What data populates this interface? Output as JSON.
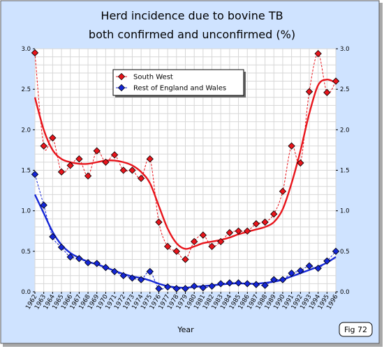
{
  "chart_data": {
    "type": "line",
    "title_lines": [
      "Herd incidence due to bovine TB",
      "both confirmed and unconfirmed (%)"
    ],
    "xlabel": "Year",
    "ylabel": "",
    "badge": "Fig 72",
    "x_ticks": [
      "1962",
      "1963",
      "1964",
      "1965",
      "1966",
      "1967",
      "1968",
      "1969",
      "1970",
      "1971",
      "1972",
      "1973",
      "1974",
      "1975",
      "1976",
      "1977",
      "1978",
      "1979",
      "1980",
      "1981",
      "1982",
      "1983",
      "1984",
      "1985",
      "1986",
      "1987",
      "1988",
      "1989",
      "1990",
      "1991",
      "1992",
      "1993",
      "1994",
      "1995",
      "1996"
    ],
    "y_ticks": [
      "0.0",
      "0.5",
      "1.0",
      "1.5",
      "2.0",
      "2.5",
      "3.0"
    ],
    "xlim": [
      1962,
      1996
    ],
    "ylim": [
      0,
      3.0
    ],
    "grid": true,
    "legend_position": "top-left",
    "series": [
      {
        "name": "South West",
        "color": "#e8141b",
        "x": [
          1962,
          1963,
          1964,
          1965,
          1966,
          1967,
          1968,
          1969,
          1970,
          1971,
          1972,
          1973,
          1974,
          1975,
          1976,
          1977,
          1978,
          1979,
          1980,
          1981,
          1982,
          1983,
          1984,
          1985,
          1986,
          1987,
          1988,
          1989,
          1990,
          1991,
          1992,
          1993,
          1994,
          1995,
          1996
        ],
        "y": [
          2.95,
          1.8,
          1.9,
          1.48,
          1.56,
          1.64,
          1.43,
          1.74,
          1.6,
          1.69,
          1.5,
          1.5,
          1.4,
          1.64,
          0.86,
          0.56,
          0.5,
          0.4,
          0.62,
          0.7,
          0.56,
          0.62,
          0.73,
          0.75,
          0.75,
          0.84,
          0.86,
          0.96,
          1.24,
          1.8,
          1.59,
          2.47,
          2.94,
          2.46,
          2.6
        ],
        "trend": [
          2.4,
          2.0,
          1.75,
          1.64,
          1.6,
          1.58,
          1.58,
          1.6,
          1.62,
          1.62,
          1.6,
          1.56,
          1.48,
          1.34,
          1.06,
          0.78,
          0.6,
          0.53,
          0.56,
          0.6,
          0.62,
          0.64,
          0.67,
          0.71,
          0.74,
          0.77,
          0.8,
          0.86,
          1.02,
          1.34,
          1.74,
          2.2,
          2.55,
          2.62,
          2.58
        ]
      },
      {
        "name": "Rest of England and Wales",
        "color": "#1426d6",
        "x": [
          1962,
          1963,
          1964,
          1965,
          1966,
          1967,
          1968,
          1969,
          1970,
          1971,
          1972,
          1973,
          1974,
          1975,
          1976,
          1977,
          1978,
          1979,
          1980,
          1981,
          1982,
          1983,
          1984,
          1985,
          1986,
          1987,
          1988,
          1989,
          1990,
          1991,
          1992,
          1993,
          1994,
          1995,
          1996
        ],
        "y": [
          1.45,
          1.07,
          0.68,
          0.55,
          0.43,
          0.41,
          0.36,
          0.35,
          0.3,
          0.25,
          0.2,
          0.17,
          0.15,
          0.25,
          0.04,
          0.06,
          0.04,
          0.04,
          0.07,
          0.05,
          0.07,
          0.1,
          0.11,
          0.11,
          0.1,
          0.09,
          0.08,
          0.15,
          0.15,
          0.23,
          0.26,
          0.32,
          0.29,
          0.38,
          0.5
        ],
        "trend": [
          1.2,
          0.97,
          0.74,
          0.58,
          0.48,
          0.42,
          0.37,
          0.34,
          0.3,
          0.26,
          0.22,
          0.19,
          0.17,
          0.14,
          0.1,
          0.07,
          0.055,
          0.05,
          0.06,
          0.07,
          0.08,
          0.09,
          0.1,
          0.105,
          0.1,
          0.1,
          0.11,
          0.125,
          0.15,
          0.19,
          0.23,
          0.27,
          0.31,
          0.36,
          0.43
        ]
      }
    ]
  }
}
